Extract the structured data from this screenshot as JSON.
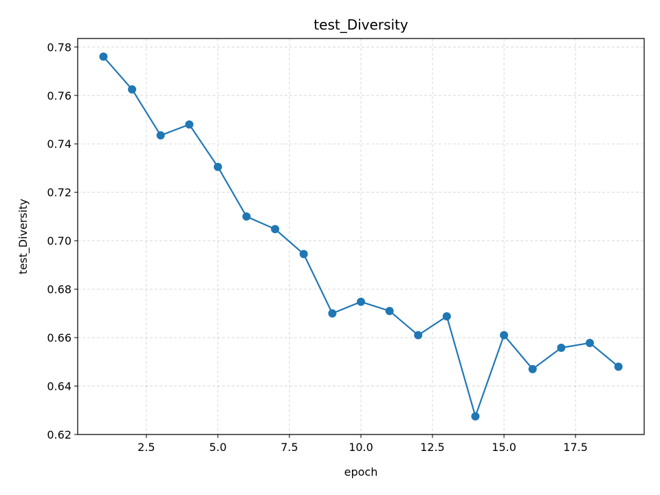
{
  "chart_data": {
    "type": "line",
    "title": "test_Diversity",
    "xlabel": "epoch",
    "ylabel": "test_Diversity",
    "xlim": [
      0.1,
      19.9
    ],
    "ylim": [
      0.62,
      0.7835
    ],
    "xticks": [
      2.5,
      5.0,
      7.5,
      10.0,
      12.5,
      15.0,
      17.5
    ],
    "xtick_labels": [
      "2.5",
      "5.0",
      "7.5",
      "10.0",
      "12.5",
      "15.0",
      "17.5"
    ],
    "yticks": [
      0.62,
      0.64,
      0.66,
      0.68,
      0.7,
      0.72,
      0.74,
      0.76,
      0.78
    ],
    "ytick_labels": [
      "0.62",
      "0.64",
      "0.66",
      "0.68",
      "0.70",
      "0.72",
      "0.74",
      "0.76",
      "0.78"
    ],
    "grid": true,
    "series": [
      {
        "color": "#1f77b4",
        "marker": "circle",
        "x": [
          1,
          2,
          3,
          4,
          5,
          6,
          7,
          8,
          9,
          10,
          11,
          12,
          13,
          14,
          15,
          16,
          17,
          18,
          19
        ],
        "values": [
          0.776,
          0.7625,
          0.7435,
          0.748,
          0.7305,
          0.71,
          0.7048,
          0.6945,
          0.67,
          0.6748,
          0.671,
          0.661,
          0.6688,
          0.6275,
          0.661,
          0.647,
          0.6558,
          0.6578,
          0.648
        ]
      }
    ]
  }
}
